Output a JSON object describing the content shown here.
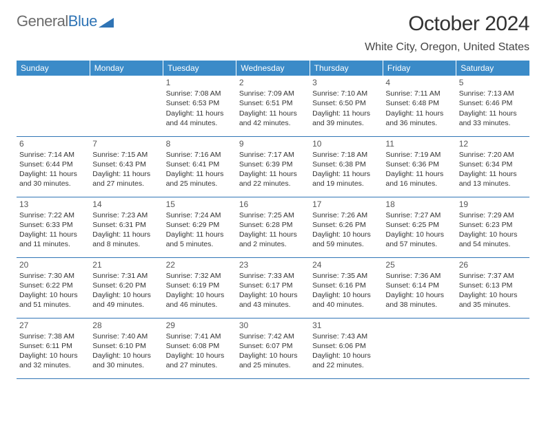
{
  "logo": {
    "text_gray": "General",
    "text_blue": "Blue",
    "triangle_color": "#2f74b5"
  },
  "title": "October 2024",
  "location": "White City, Oregon, United States",
  "colors": {
    "header_bg": "#3b8bc8",
    "header_fg": "#ffffff",
    "cell_border": "#2f74b5",
    "text": "#333333"
  },
  "weekdays": [
    "Sunday",
    "Monday",
    "Tuesday",
    "Wednesday",
    "Thursday",
    "Friday",
    "Saturday"
  ],
  "weeks": [
    [
      null,
      null,
      {
        "n": "1",
        "sr": "Sunrise: 7:08 AM",
        "ss": "Sunset: 6:53 PM",
        "dl": "Daylight: 11 hours and 44 minutes."
      },
      {
        "n": "2",
        "sr": "Sunrise: 7:09 AM",
        "ss": "Sunset: 6:51 PM",
        "dl": "Daylight: 11 hours and 42 minutes."
      },
      {
        "n": "3",
        "sr": "Sunrise: 7:10 AM",
        "ss": "Sunset: 6:50 PM",
        "dl": "Daylight: 11 hours and 39 minutes."
      },
      {
        "n": "4",
        "sr": "Sunrise: 7:11 AM",
        "ss": "Sunset: 6:48 PM",
        "dl": "Daylight: 11 hours and 36 minutes."
      },
      {
        "n": "5",
        "sr": "Sunrise: 7:13 AM",
        "ss": "Sunset: 6:46 PM",
        "dl": "Daylight: 11 hours and 33 minutes."
      }
    ],
    [
      {
        "n": "6",
        "sr": "Sunrise: 7:14 AM",
        "ss": "Sunset: 6:44 PM",
        "dl": "Daylight: 11 hours and 30 minutes."
      },
      {
        "n": "7",
        "sr": "Sunrise: 7:15 AM",
        "ss": "Sunset: 6:43 PM",
        "dl": "Daylight: 11 hours and 27 minutes."
      },
      {
        "n": "8",
        "sr": "Sunrise: 7:16 AM",
        "ss": "Sunset: 6:41 PM",
        "dl": "Daylight: 11 hours and 25 minutes."
      },
      {
        "n": "9",
        "sr": "Sunrise: 7:17 AM",
        "ss": "Sunset: 6:39 PM",
        "dl": "Daylight: 11 hours and 22 minutes."
      },
      {
        "n": "10",
        "sr": "Sunrise: 7:18 AM",
        "ss": "Sunset: 6:38 PM",
        "dl": "Daylight: 11 hours and 19 minutes."
      },
      {
        "n": "11",
        "sr": "Sunrise: 7:19 AM",
        "ss": "Sunset: 6:36 PM",
        "dl": "Daylight: 11 hours and 16 minutes."
      },
      {
        "n": "12",
        "sr": "Sunrise: 7:20 AM",
        "ss": "Sunset: 6:34 PM",
        "dl": "Daylight: 11 hours and 13 minutes."
      }
    ],
    [
      {
        "n": "13",
        "sr": "Sunrise: 7:22 AM",
        "ss": "Sunset: 6:33 PM",
        "dl": "Daylight: 11 hours and 11 minutes."
      },
      {
        "n": "14",
        "sr": "Sunrise: 7:23 AM",
        "ss": "Sunset: 6:31 PM",
        "dl": "Daylight: 11 hours and 8 minutes."
      },
      {
        "n": "15",
        "sr": "Sunrise: 7:24 AM",
        "ss": "Sunset: 6:29 PM",
        "dl": "Daylight: 11 hours and 5 minutes."
      },
      {
        "n": "16",
        "sr": "Sunrise: 7:25 AM",
        "ss": "Sunset: 6:28 PM",
        "dl": "Daylight: 11 hours and 2 minutes."
      },
      {
        "n": "17",
        "sr": "Sunrise: 7:26 AM",
        "ss": "Sunset: 6:26 PM",
        "dl": "Daylight: 10 hours and 59 minutes."
      },
      {
        "n": "18",
        "sr": "Sunrise: 7:27 AM",
        "ss": "Sunset: 6:25 PM",
        "dl": "Daylight: 10 hours and 57 minutes."
      },
      {
        "n": "19",
        "sr": "Sunrise: 7:29 AM",
        "ss": "Sunset: 6:23 PM",
        "dl": "Daylight: 10 hours and 54 minutes."
      }
    ],
    [
      {
        "n": "20",
        "sr": "Sunrise: 7:30 AM",
        "ss": "Sunset: 6:22 PM",
        "dl": "Daylight: 10 hours and 51 minutes."
      },
      {
        "n": "21",
        "sr": "Sunrise: 7:31 AM",
        "ss": "Sunset: 6:20 PM",
        "dl": "Daylight: 10 hours and 49 minutes."
      },
      {
        "n": "22",
        "sr": "Sunrise: 7:32 AM",
        "ss": "Sunset: 6:19 PM",
        "dl": "Daylight: 10 hours and 46 minutes."
      },
      {
        "n": "23",
        "sr": "Sunrise: 7:33 AM",
        "ss": "Sunset: 6:17 PM",
        "dl": "Daylight: 10 hours and 43 minutes."
      },
      {
        "n": "24",
        "sr": "Sunrise: 7:35 AM",
        "ss": "Sunset: 6:16 PM",
        "dl": "Daylight: 10 hours and 40 minutes."
      },
      {
        "n": "25",
        "sr": "Sunrise: 7:36 AM",
        "ss": "Sunset: 6:14 PM",
        "dl": "Daylight: 10 hours and 38 minutes."
      },
      {
        "n": "26",
        "sr": "Sunrise: 7:37 AM",
        "ss": "Sunset: 6:13 PM",
        "dl": "Daylight: 10 hours and 35 minutes."
      }
    ],
    [
      {
        "n": "27",
        "sr": "Sunrise: 7:38 AM",
        "ss": "Sunset: 6:11 PM",
        "dl": "Daylight: 10 hours and 32 minutes."
      },
      {
        "n": "28",
        "sr": "Sunrise: 7:40 AM",
        "ss": "Sunset: 6:10 PM",
        "dl": "Daylight: 10 hours and 30 minutes."
      },
      {
        "n": "29",
        "sr": "Sunrise: 7:41 AM",
        "ss": "Sunset: 6:08 PM",
        "dl": "Daylight: 10 hours and 27 minutes."
      },
      {
        "n": "30",
        "sr": "Sunrise: 7:42 AM",
        "ss": "Sunset: 6:07 PM",
        "dl": "Daylight: 10 hours and 25 minutes."
      },
      {
        "n": "31",
        "sr": "Sunrise: 7:43 AM",
        "ss": "Sunset: 6:06 PM",
        "dl": "Daylight: 10 hours and 22 minutes."
      },
      null,
      null
    ]
  ]
}
